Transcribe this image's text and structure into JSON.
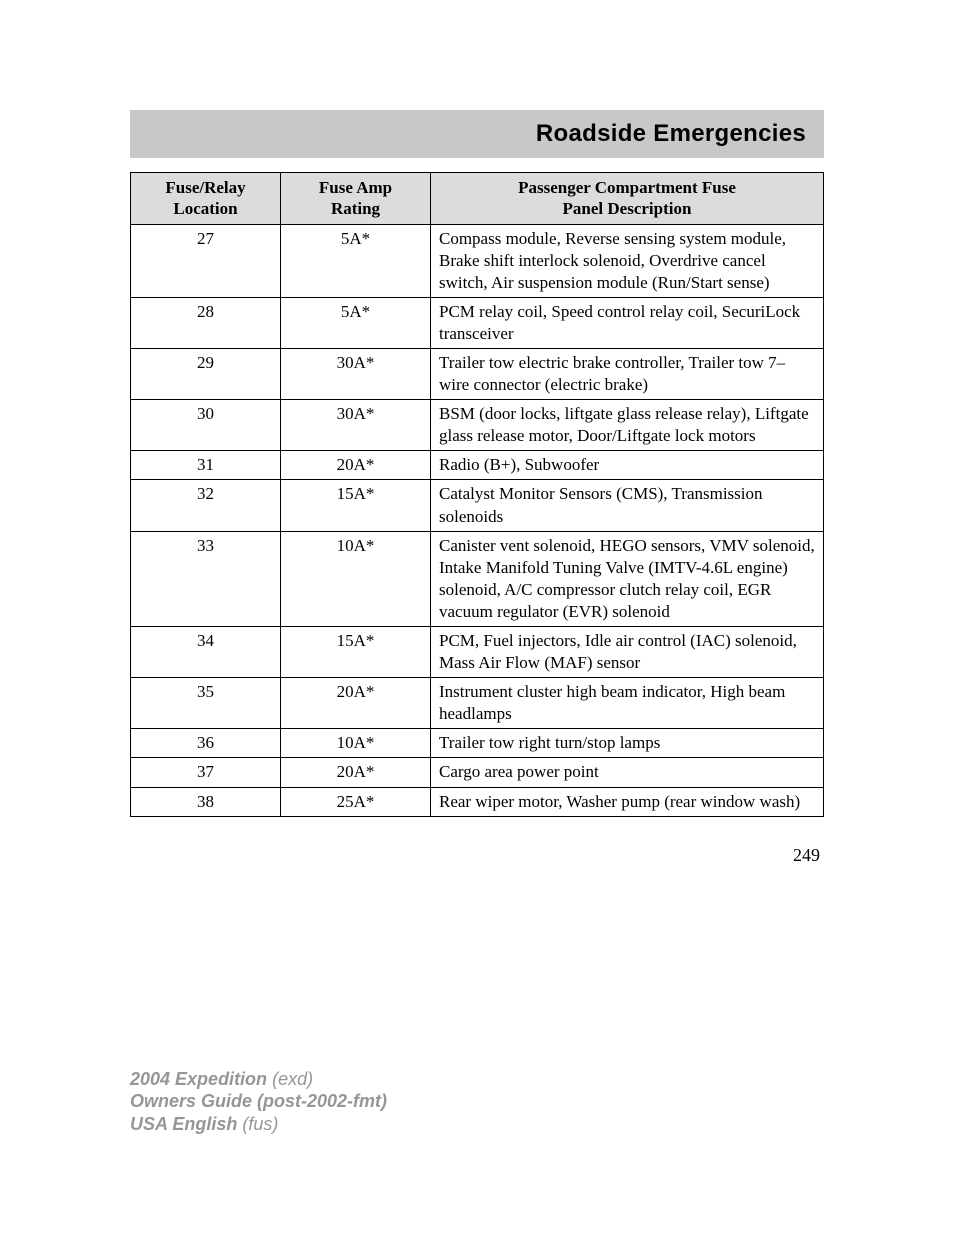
{
  "header": {
    "title": "Roadside Emergencies",
    "bar_bg": "#c8c8c8",
    "title_fontsize": 24,
    "title_color": "#000000"
  },
  "fuse_table": {
    "header_bg": "#dcdcdc",
    "border_color": "#000000",
    "font_family": "Georgia, serif",
    "cell_fontsize": 17,
    "columns": [
      {
        "key": "loc",
        "label_line1": "Fuse/Relay",
        "label_line2": "Location",
        "width": 150,
        "align": "center"
      },
      {
        "key": "rating",
        "label_line1": "Fuse Amp",
        "label_line2": "Rating",
        "width": 150,
        "align": "center"
      },
      {
        "key": "desc",
        "label_line1": "Passenger Compartment Fuse",
        "label_line2": "Panel Description",
        "width": null,
        "align": "left"
      }
    ],
    "rows": [
      {
        "loc": "27",
        "rating": "5A*",
        "desc": "Compass module, Reverse sensing system module, Brake shift interlock solenoid, Overdrive cancel switch, Air suspension module (Run/Start sense)"
      },
      {
        "loc": "28",
        "rating": "5A*",
        "desc": "PCM relay coil, Speed control relay coil, SecuriLock transceiver"
      },
      {
        "loc": "29",
        "rating": "30A*",
        "desc": "Trailer tow electric brake controller, Trailer tow 7–wire connector (electric brake)"
      },
      {
        "loc": "30",
        "rating": "30A*",
        "desc": "BSM (door locks, liftgate glass release relay), Liftgate glass release motor, Door/Liftgate lock motors"
      },
      {
        "loc": "31",
        "rating": "20A*",
        "desc": "Radio (B+), Subwoofer"
      },
      {
        "loc": "32",
        "rating": "15A*",
        "desc": "Catalyst Monitor Sensors (CMS), Transmission solenoids"
      },
      {
        "loc": "33",
        "rating": "10A*",
        "desc": "Canister vent solenoid, HEGO sensors, VMV solenoid, Intake Manifold Tuning Valve (IMTV-4.6L engine) solenoid, A/C compressor clutch relay coil, EGR vacuum regulator (EVR) solenoid"
      },
      {
        "loc": "34",
        "rating": "15A*",
        "desc": "PCM, Fuel injectors, Idle air control (IAC) solenoid, Mass Air Flow (MAF) sensor"
      },
      {
        "loc": "35",
        "rating": "20A*",
        "desc": "Instrument cluster high beam indicator, High beam headlamps"
      },
      {
        "loc": "36",
        "rating": "10A*",
        "desc": "Trailer tow right turn/stop lamps"
      },
      {
        "loc": "37",
        "rating": "20A*",
        "desc": "Cargo area power point"
      },
      {
        "loc": "38",
        "rating": "25A*",
        "desc": "Rear wiper motor, Washer pump (rear window wash)"
      }
    ]
  },
  "page_number": "249",
  "footer": {
    "color": "#969696",
    "fontsize": 18,
    "line1_bold": "2004 Expedition",
    "line1_rest": "(exd)",
    "line2_bold": "Owners Guide (post-2002-fmt)",
    "line3_bold": "USA English",
    "line3_rest": "(fus)"
  }
}
